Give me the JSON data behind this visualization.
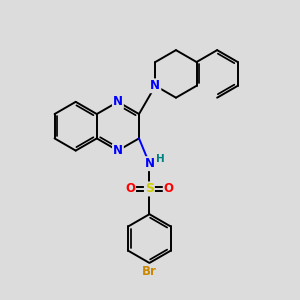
{
  "bg_color": "#dcdcdc",
  "atom_colors": {
    "N": "#0000ff",
    "O": "#ff0000",
    "S": "#cccc00",
    "Br": "#cc8800",
    "H": "#008080",
    "C": "#000000"
  },
  "bond_color": "#000000",
  "bond_width": 1.4
}
